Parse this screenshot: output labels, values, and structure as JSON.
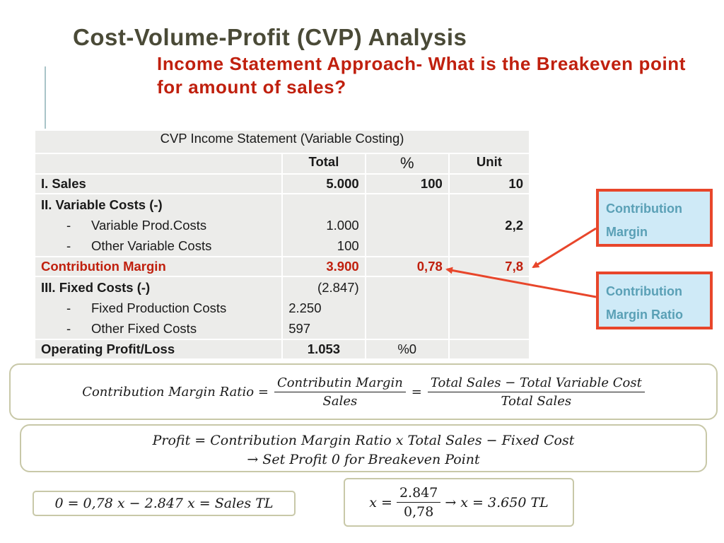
{
  "slide": {
    "title": "Cost-Volume-Profit (CVP) Analysis",
    "subtitle": "Income Statement Approach- What is the Breakeven point for amount of sales?",
    "accent_color": "#c0200e",
    "title_color": "#4a4a37"
  },
  "table": {
    "caption": "CVP Income Statement (Variable Costing)",
    "columns": [
      "",
      "Total",
      "%",
      "Unit"
    ],
    "sales": {
      "label": "I. Sales",
      "total": "5.000",
      "pct": "100",
      "unit": "10"
    },
    "variable": {
      "label": "II. Variable Costs (-)",
      "items": [
        {
          "label": "Variable Prod.Costs",
          "total": "1.000",
          "unit": "2,2"
        },
        {
          "label": "Other Variable Costs",
          "total": "100",
          "unit": ""
        }
      ]
    },
    "cm": {
      "label": "Contribution Margin",
      "total": "3.900",
      "pct": "0,78",
      "unit": "7,8"
    },
    "fixed": {
      "label": "III. Fixed Costs (-)",
      "total": "(2.847)",
      "items": [
        {
          "label": "Fixed Production Costs",
          "total": "2.250"
        },
        {
          "label": "Other Fixed Costs",
          "total": "597"
        }
      ]
    },
    "op": {
      "label": "Operating Profit/Loss",
      "total": "1.053",
      "pct": "%0",
      "unit": ""
    }
  },
  "callouts": {
    "cm": {
      "line1": "Contribution",
      "line2": "Margin"
    },
    "cmr": {
      "line1": "Contribution",
      "line2": "Margin Ratio"
    }
  },
  "formulas": {
    "f1": {
      "lhs": "Contribution Margin Ratio =",
      "num1": "Contributin Margin",
      "den1": "Sales",
      "eq": "=",
      "num2": "Total Sales − Total Variable Cost",
      "den2": "Total Sales"
    },
    "f2": {
      "line1": "Profit = Contribution Margin Ratio x Total Sales − Fixed Cost",
      "line2": "→ Set Profit 0 for Breakeven Point"
    },
    "f3": {
      "text": "0 = 0,78 x − 2.847 x = Sales TL"
    },
    "f4": {
      "lhs": "x =",
      "num": "2.847",
      "den": "0,78",
      "rhs": "→  x = 3.650 TL"
    }
  }
}
